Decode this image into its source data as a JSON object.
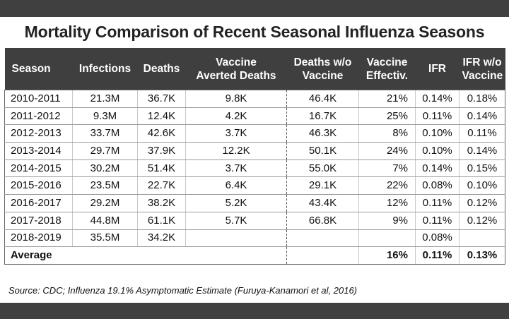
{
  "title": "Mortality Comparison of Recent Seasonal Influenza Seasons",
  "headers": {
    "season": "Season",
    "infections": "Infections",
    "deaths": "Deaths",
    "averted_line1": "Vaccine",
    "averted_line2": "Averted Deaths",
    "wo_line1": "Deaths w/o",
    "wo_line2": "Vaccine",
    "eff_line1": "Vaccine",
    "eff_line2": "Effectiv.",
    "ifr": "IFR",
    "ifrwo_line1": "IFR w/o",
    "ifrwo_line2": "Vaccine"
  },
  "rows": [
    {
      "season": "2010-2011",
      "infections": "21.3M",
      "deaths": "36.7K",
      "averted": "9.8K",
      "deaths_wo": "46.4K",
      "effectiveness": "21%",
      "ifr": "0.14%",
      "ifr_wo": "0.18%"
    },
    {
      "season": "2011-2012",
      "infections": "9.3M",
      "deaths": "12.4K",
      "averted": "4.2K",
      "deaths_wo": "16.7K",
      "effectiveness": "25%",
      "ifr": "0.11%",
      "ifr_wo": "0.14%"
    },
    {
      "season": "2012-2013",
      "infections": "33.7M",
      "deaths": "42.6K",
      "averted": "3.7K",
      "deaths_wo": "46.3K",
      "effectiveness": "8%",
      "ifr": "0.10%",
      "ifr_wo": "0.11%"
    },
    {
      "season": "2013-2014",
      "infections": "29.7M",
      "deaths": "37.9K",
      "averted": "12.2K",
      "deaths_wo": "50.1K",
      "effectiveness": "24%",
      "ifr": "0.10%",
      "ifr_wo": "0.14%"
    },
    {
      "season": "2014-2015",
      "infections": "30.2M",
      "deaths": "51.4K",
      "averted": "3.7K",
      "deaths_wo": "55.0K",
      "effectiveness": "7%",
      "ifr": "0.14%",
      "ifr_wo": "0.15%"
    },
    {
      "season": "2015-2016",
      "infections": "23.5M",
      "deaths": "22.7K",
      "averted": "6.4K",
      "deaths_wo": "29.1K",
      "effectiveness": "22%",
      "ifr": "0.08%",
      "ifr_wo": "0.10%"
    },
    {
      "season": "2016-2017",
      "infections": "29.2M",
      "deaths": "38.2K",
      "averted": "5.2K",
      "deaths_wo": "43.4K",
      "effectiveness": "12%",
      "ifr": "0.11%",
      "ifr_wo": "0.12%"
    },
    {
      "season": "2017-2018",
      "infections": "44.8M",
      "deaths": "61.1K",
      "averted": "5.7K",
      "deaths_wo": "66.8K",
      "effectiveness": "9%",
      "ifr": "0.11%",
      "ifr_wo": "0.12%"
    },
    {
      "season": "2018-2019",
      "infections": "35.5M",
      "deaths": "34.2K",
      "averted": "",
      "deaths_wo": "",
      "effectiveness": "",
      "ifr": "0.08%",
      "ifr_wo": ""
    }
  ],
  "average": {
    "label": "Average",
    "effectiveness": "16%",
    "ifr": "0.11%",
    "ifr_wo": "0.13%"
  },
  "source": "Source: CDC; Influenza 19.1% Asymptomatic Estimate (Furuya-Kanamori et al, 2016)",
  "colors": {
    "band": "#404040",
    "header_bg": "#3f3f3f",
    "header_text": "#ffffff"
  }
}
